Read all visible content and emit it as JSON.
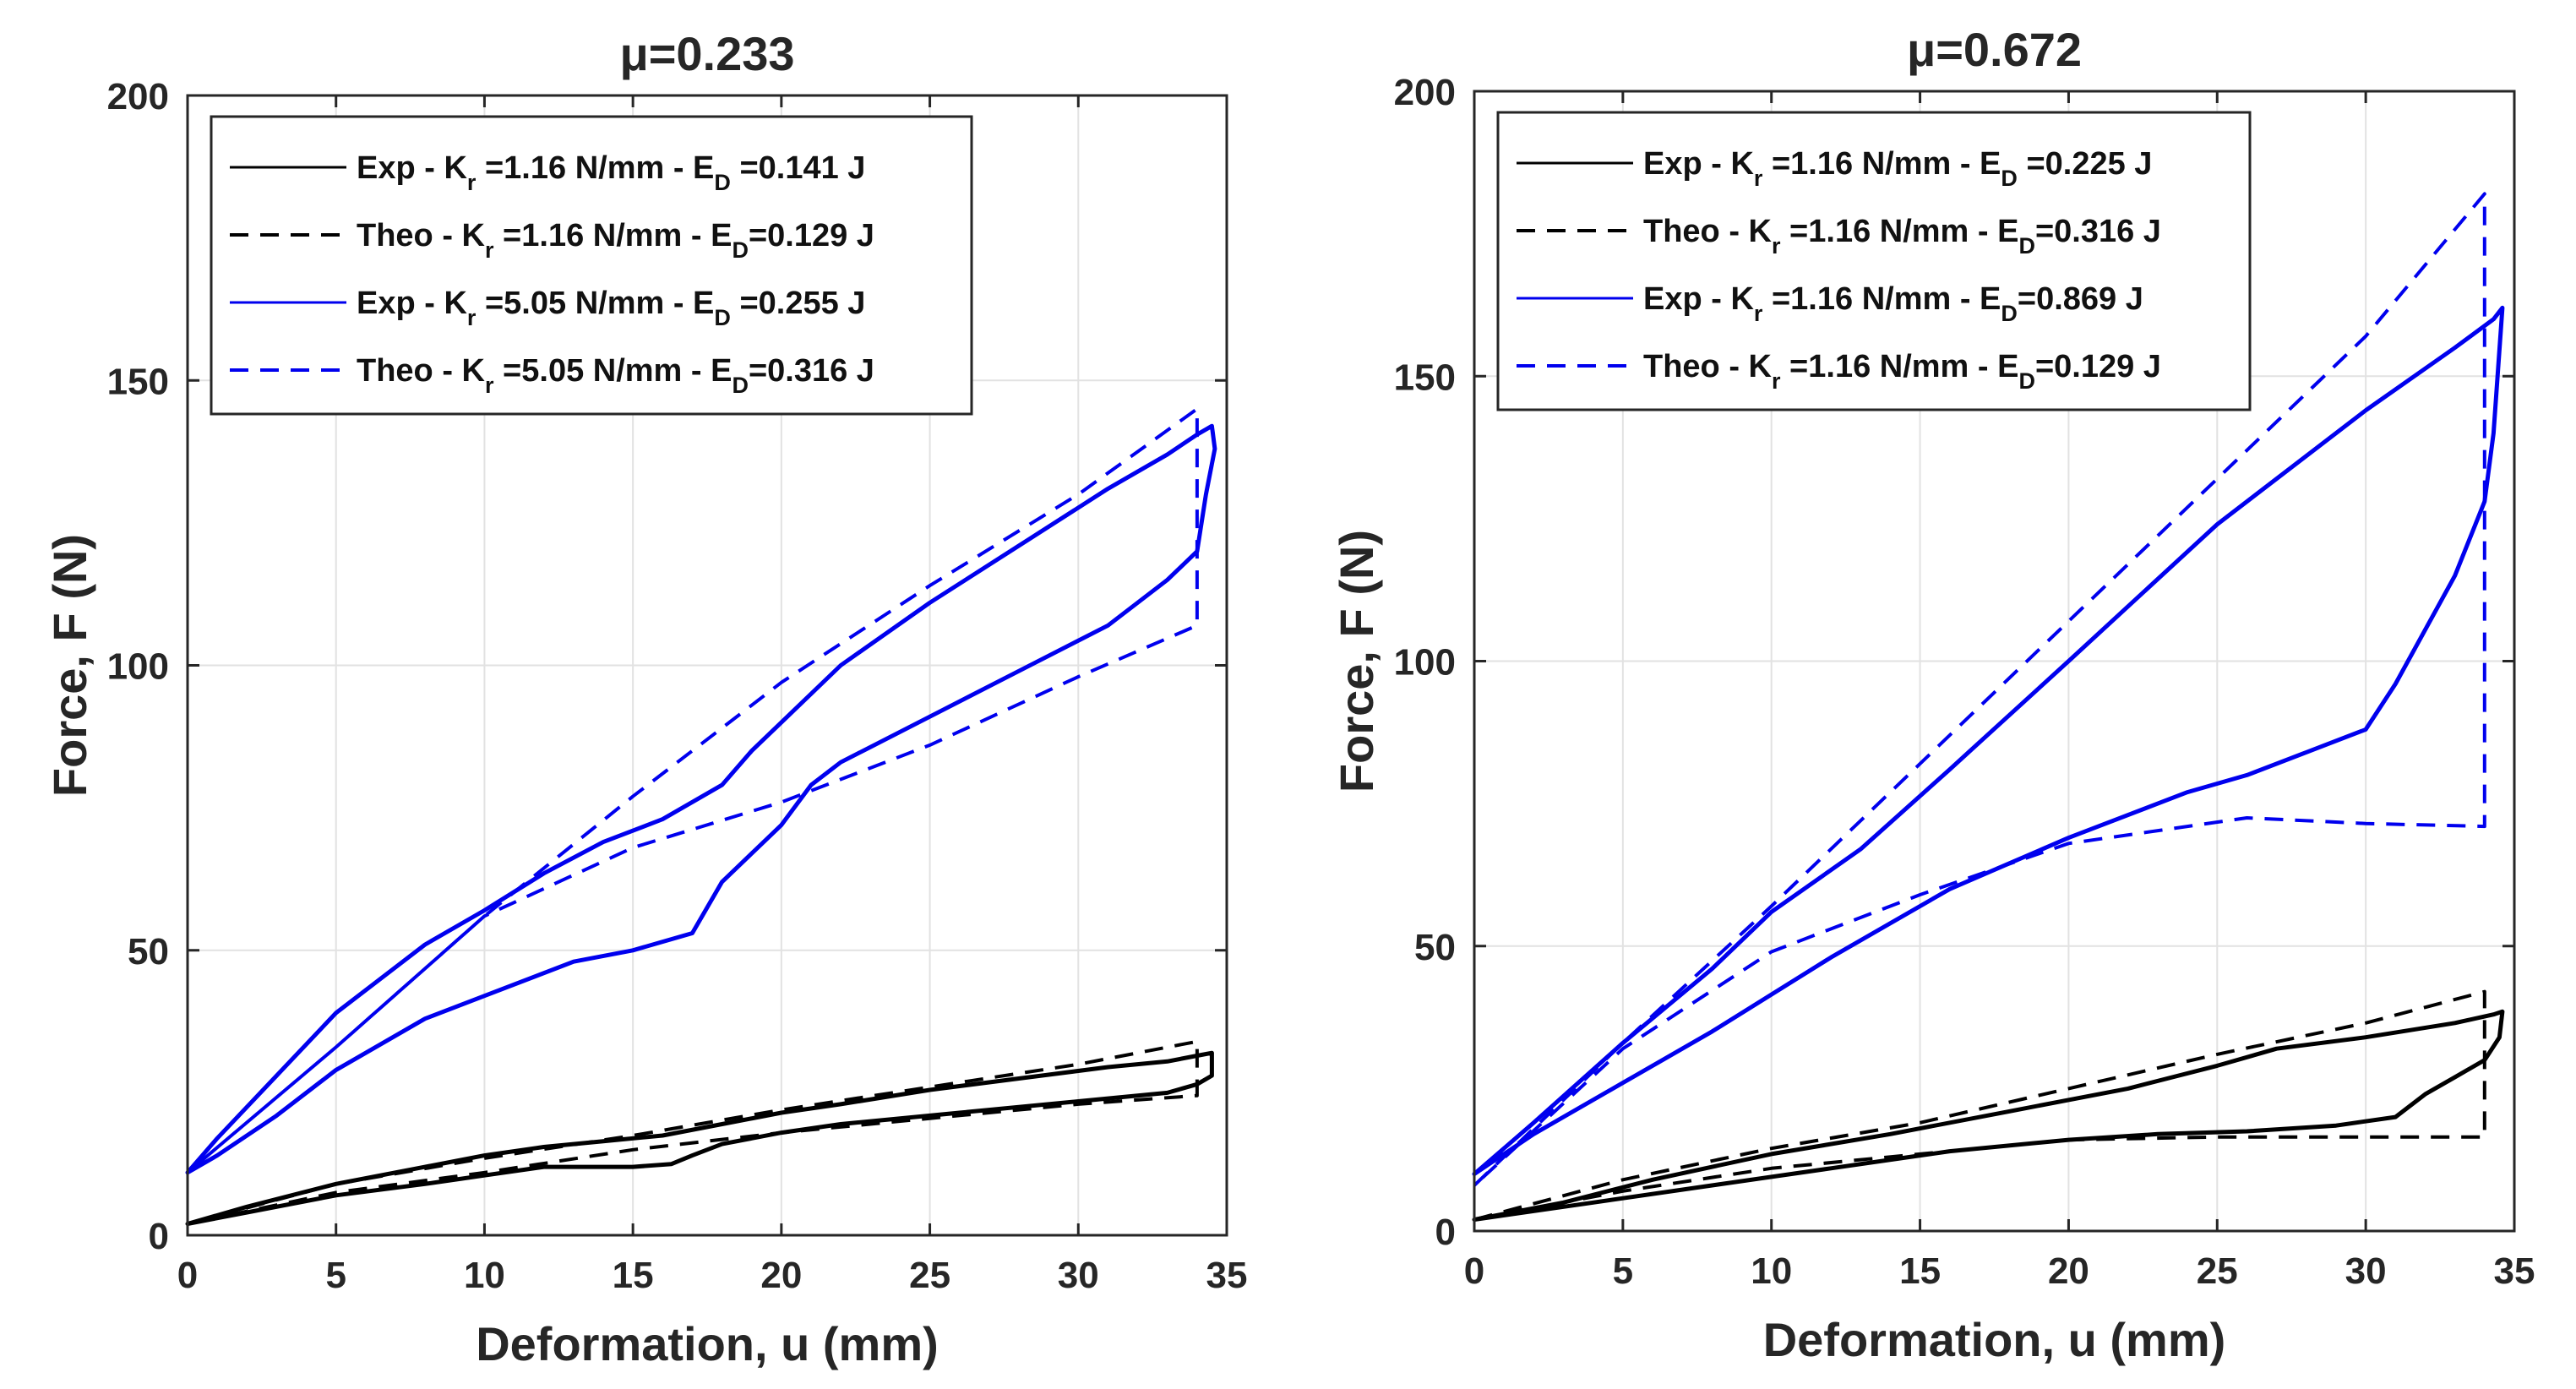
{
  "chart_data": [
    {
      "type": "line",
      "title": "μ=0.233",
      "xlabel": "Deformation, u (mm)",
      "ylabel": "Force, F (N)",
      "xlim": [
        0,
        35
      ],
      "ylim": [
        0,
        200
      ],
      "xticks": [
        "0",
        "5",
        "10",
        "15",
        "20",
        "25",
        "30",
        "35"
      ],
      "yticks": [
        "0",
        "50",
        "100",
        "150",
        "200"
      ],
      "grid": true,
      "legend_position": "top-left",
      "series": [
        {
          "name": "Exp - K_r =1.16 N/mm - E_D =0.141 J",
          "label_parts": [
            "Exp - K",
            "r",
            " =1.16 N/mm - E",
            "D",
            " =0.141 J"
          ],
          "color": "#000000",
          "style": "solid",
          "x": [
            0,
            2,
            5,
            8,
            10,
            12,
            14,
            16,
            18,
            20,
            22,
            25,
            28,
            31,
            33,
            34,
            34.5,
            34.5,
            34,
            33,
            30,
            26,
            22,
            20,
            18,
            17,
            16.3,
            15,
            12,
            10,
            8,
            5,
            2,
            0
          ],
          "y": [
            2,
            5,
            9,
            12,
            14,
            15.5,
            16.5,
            17.5,
            19.5,
            21.5,
            23,
            25.5,
            27.5,
            29.5,
            30.5,
            31.5,
            32,
            28,
            26.5,
            25,
            23.5,
            21.5,
            19.5,
            18,
            16,
            14,
            12.5,
            12,
            12,
            10.5,
            9,
            7,
            4,
            2
          ]
        },
        {
          "name": "Theo - K_r =1.16 N/mm - E_D=0.129 J",
          "label_parts": [
            "Theo - K",
            "r",
            " =1.16 N/mm - E",
            "D",
            "=0.129 J"
          ],
          "color": "#000000",
          "style": "dashed",
          "x": [
            0,
            5,
            10,
            15,
            20,
            25,
            30,
            34,
            34,
            30,
            25,
            20,
            15,
            10,
            5,
            0
          ],
          "y": [
            2,
            9,
            13.5,
            17.5,
            22,
            26,
            30,
            34,
            24.5,
            23,
            20.5,
            18,
            15,
            11,
            7.5,
            2
          ]
        },
        {
          "name": "Exp - K_r =5.05 N/mm - E_D =0.255 J",
          "label_parts": [
            "Exp - K",
            "r",
            " =5.05 N/mm - E",
            "D",
            " =0.255 J"
          ],
          "color": "#0000ee",
          "style": "solid",
          "x": [
            0,
            1,
            3,
            5,
            8,
            10,
            12,
            14,
            16,
            18,
            19,
            20,
            22,
            25,
            28,
            31,
            33,
            34,
            34.5,
            34.6,
            34.3,
            34,
            33,
            31,
            28,
            25,
            22,
            21,
            20,
            18,
            17,
            16,
            15,
            13,
            10,
            8,
            5,
            3,
            1,
            0
          ],
          "y": [
            11,
            17,
            28,
            39,
            51,
            57,
            63.5,
            69,
            73,
            79,
            85,
            90,
            100,
            111,
            121,
            131,
            137,
            140.5,
            142,
            138,
            130,
            120,
            115,
            107,
            99,
            91,
            83,
            79,
            72,
            62,
            53,
            51.5,
            50,
            48,
            42,
            38,
            29,
            21,
            14,
            11
          ]
        },
        {
          "name": "Theo - K_r =5.05 N/mm - E_D=0.316 J",
          "label_parts": [
            "Theo - K",
            "r",
            " =5.05 N/mm - E",
            "D",
            "=0.316 J"
          ],
          "color": "#0000ee",
          "style": "dashed",
          "x": [
            0,
            5,
            10,
            15,
            20,
            25,
            30,
            34,
            34,
            30,
            25,
            20,
            15,
            10,
            5,
            0
          ],
          "y": [
            11,
            33,
            56,
            77,
            97,
            114,
            130,
            145,
            107,
            98,
            86,
            76,
            68,
            56,
            33,
            11
          ]
        }
      ]
    },
    {
      "type": "line",
      "title": "μ=0.672",
      "xlabel": "Deformation, u (mm)",
      "ylabel": "Force, F (N)",
      "xlim": [
        0,
        35
      ],
      "ylim": [
        0,
        200
      ],
      "xticks": [
        "0",
        "5",
        "10",
        "15",
        "20",
        "25",
        "30",
        "35"
      ],
      "yticks": [
        "0",
        "50",
        "100",
        "150",
        "200"
      ],
      "grid": true,
      "legend_position": "top-left",
      "series": [
        {
          "name": "Exp - K_r =1.16 N/mm - E_D =0.225 J",
          "label_parts": [
            "Exp - K",
            "r",
            " =1.16 N/mm - E",
            "D",
            " =0.225 J"
          ],
          "color": "#000000",
          "style": "solid",
          "x": [
            0,
            3,
            6,
            10,
            14,
            18,
            22,
            25,
            27,
            30,
            33,
            34.3,
            34.6,
            34.5,
            34,
            33,
            32,
            31,
            29,
            26,
            23,
            20,
            16,
            12,
            8,
            4,
            0
          ],
          "y": [
            2,
            5,
            9,
            13.5,
            17,
            21,
            25,
            29,
            32,
            34,
            36.5,
            38,
            38.5,
            34,
            30,
            27,
            24,
            20,
            18.5,
            17.5,
            17,
            16,
            14,
            11,
            8,
            5,
            2
          ]
        },
        {
          "name": "Theo - K_r =1.16 N/mm - E_D=0.316 J",
          "label_parts": [
            "Theo - K",
            "r",
            " =1.16 N/mm - E",
            "D",
            "=0.316 J"
          ],
          "color": "#000000",
          "style": "dashed",
          "x": [
            0,
            5,
            10,
            15,
            20,
            25,
            30,
            34,
            34,
            30,
            25,
            20,
            15,
            10,
            5,
            0
          ],
          "y": [
            2,
            9,
            14.5,
            19,
            25,
            31,
            36.5,
            42,
            16.5,
            16.5,
            16.5,
            16,
            13.5,
            11,
            7,
            2
          ]
        },
        {
          "name": "Exp - K_r =1.16 N/mm - E_D=0.869 J",
          "label_parts": [
            "Exp - K",
            "r",
            " =1.16 N/mm - E",
            "D",
            "=0.869 J"
          ],
          "color": "#0000ee",
          "style": "solid",
          "x": [
            0,
            2,
            5,
            8,
            10,
            13,
            16,
            20,
            25,
            30,
            33,
            34.3,
            34.6,
            34.3,
            34,
            33,
            31,
            30,
            28,
            26,
            24,
            20,
            16,
            12,
            8,
            5,
            2,
            0
          ],
          "y": [
            10,
            19,
            33,
            46,
            56,
            67,
            81,
            100,
            124,
            144,
            155,
            160,
            162,
            140,
            128,
            115,
            96,
            88,
            84,
            80,
            77,
            69,
            60,
            48,
            35,
            26,
            17,
            10
          ]
        },
        {
          "name": "Theo - K_r =1.16 N/mm - E_D=0.129 J",
          "label_parts": [
            "Theo - K",
            "r",
            " =1.16 N/mm - E",
            "D",
            "=0.129 J"
          ],
          "color": "#0000ee",
          "style": "dashed",
          "x": [
            0,
            5,
            10,
            15,
            20,
            25,
            30,
            34,
            34,
            30,
            26,
            20,
            15,
            10,
            5,
            0
          ],
          "y": [
            8,
            33,
            57,
            82,
            107,
            132,
            157,
            182,
            71,
            71.5,
            72.5,
            68,
            59,
            49,
            32,
            8
          ]
        }
      ]
    }
  ]
}
